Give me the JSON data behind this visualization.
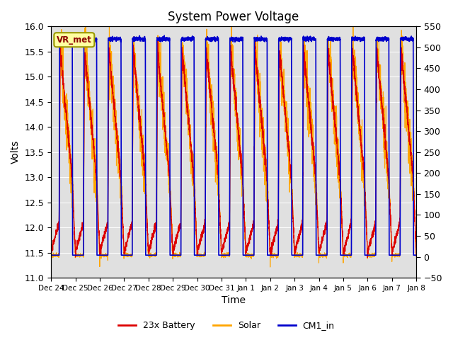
{
  "title": "System Power Voltage",
  "xlabel": "Time",
  "ylabel_left": "Volts",
  "ylim_left": [
    11.0,
    16.0
  ],
  "ylim_right": [
    -50,
    550
  ],
  "yticks_left": [
    11.0,
    11.5,
    12.0,
    12.5,
    13.0,
    13.5,
    14.0,
    14.5,
    15.0,
    15.5,
    16.0
  ],
  "yticks_right": [
    -50,
    0,
    50,
    100,
    150,
    200,
    250,
    300,
    350,
    400,
    450,
    500,
    550
  ],
  "x_labels": [
    "Dec 24",
    "Dec 25",
    "Dec 26",
    "Dec 27",
    "Dec 28",
    "Dec 29",
    "Dec 30",
    "Dec 31",
    "Jan 1",
    "Jan 2",
    "Jan 3",
    "Jan 4",
    "Jan 5",
    "Jan 6",
    "Jan 7",
    "Jan 8"
  ],
  "color_battery": "#DD0000",
  "color_solar": "#FFA500",
  "color_cm1": "#0000CC",
  "bg_color": "#E0E0E0",
  "annotation_text": "VR_met",
  "annotation_bg": "#FFFFA0",
  "annotation_border": "#999900",
  "legend_labels": [
    "23x Battery",
    "Solar",
    "CM1_in"
  ],
  "n_days": 15,
  "pts_per_day": 288
}
